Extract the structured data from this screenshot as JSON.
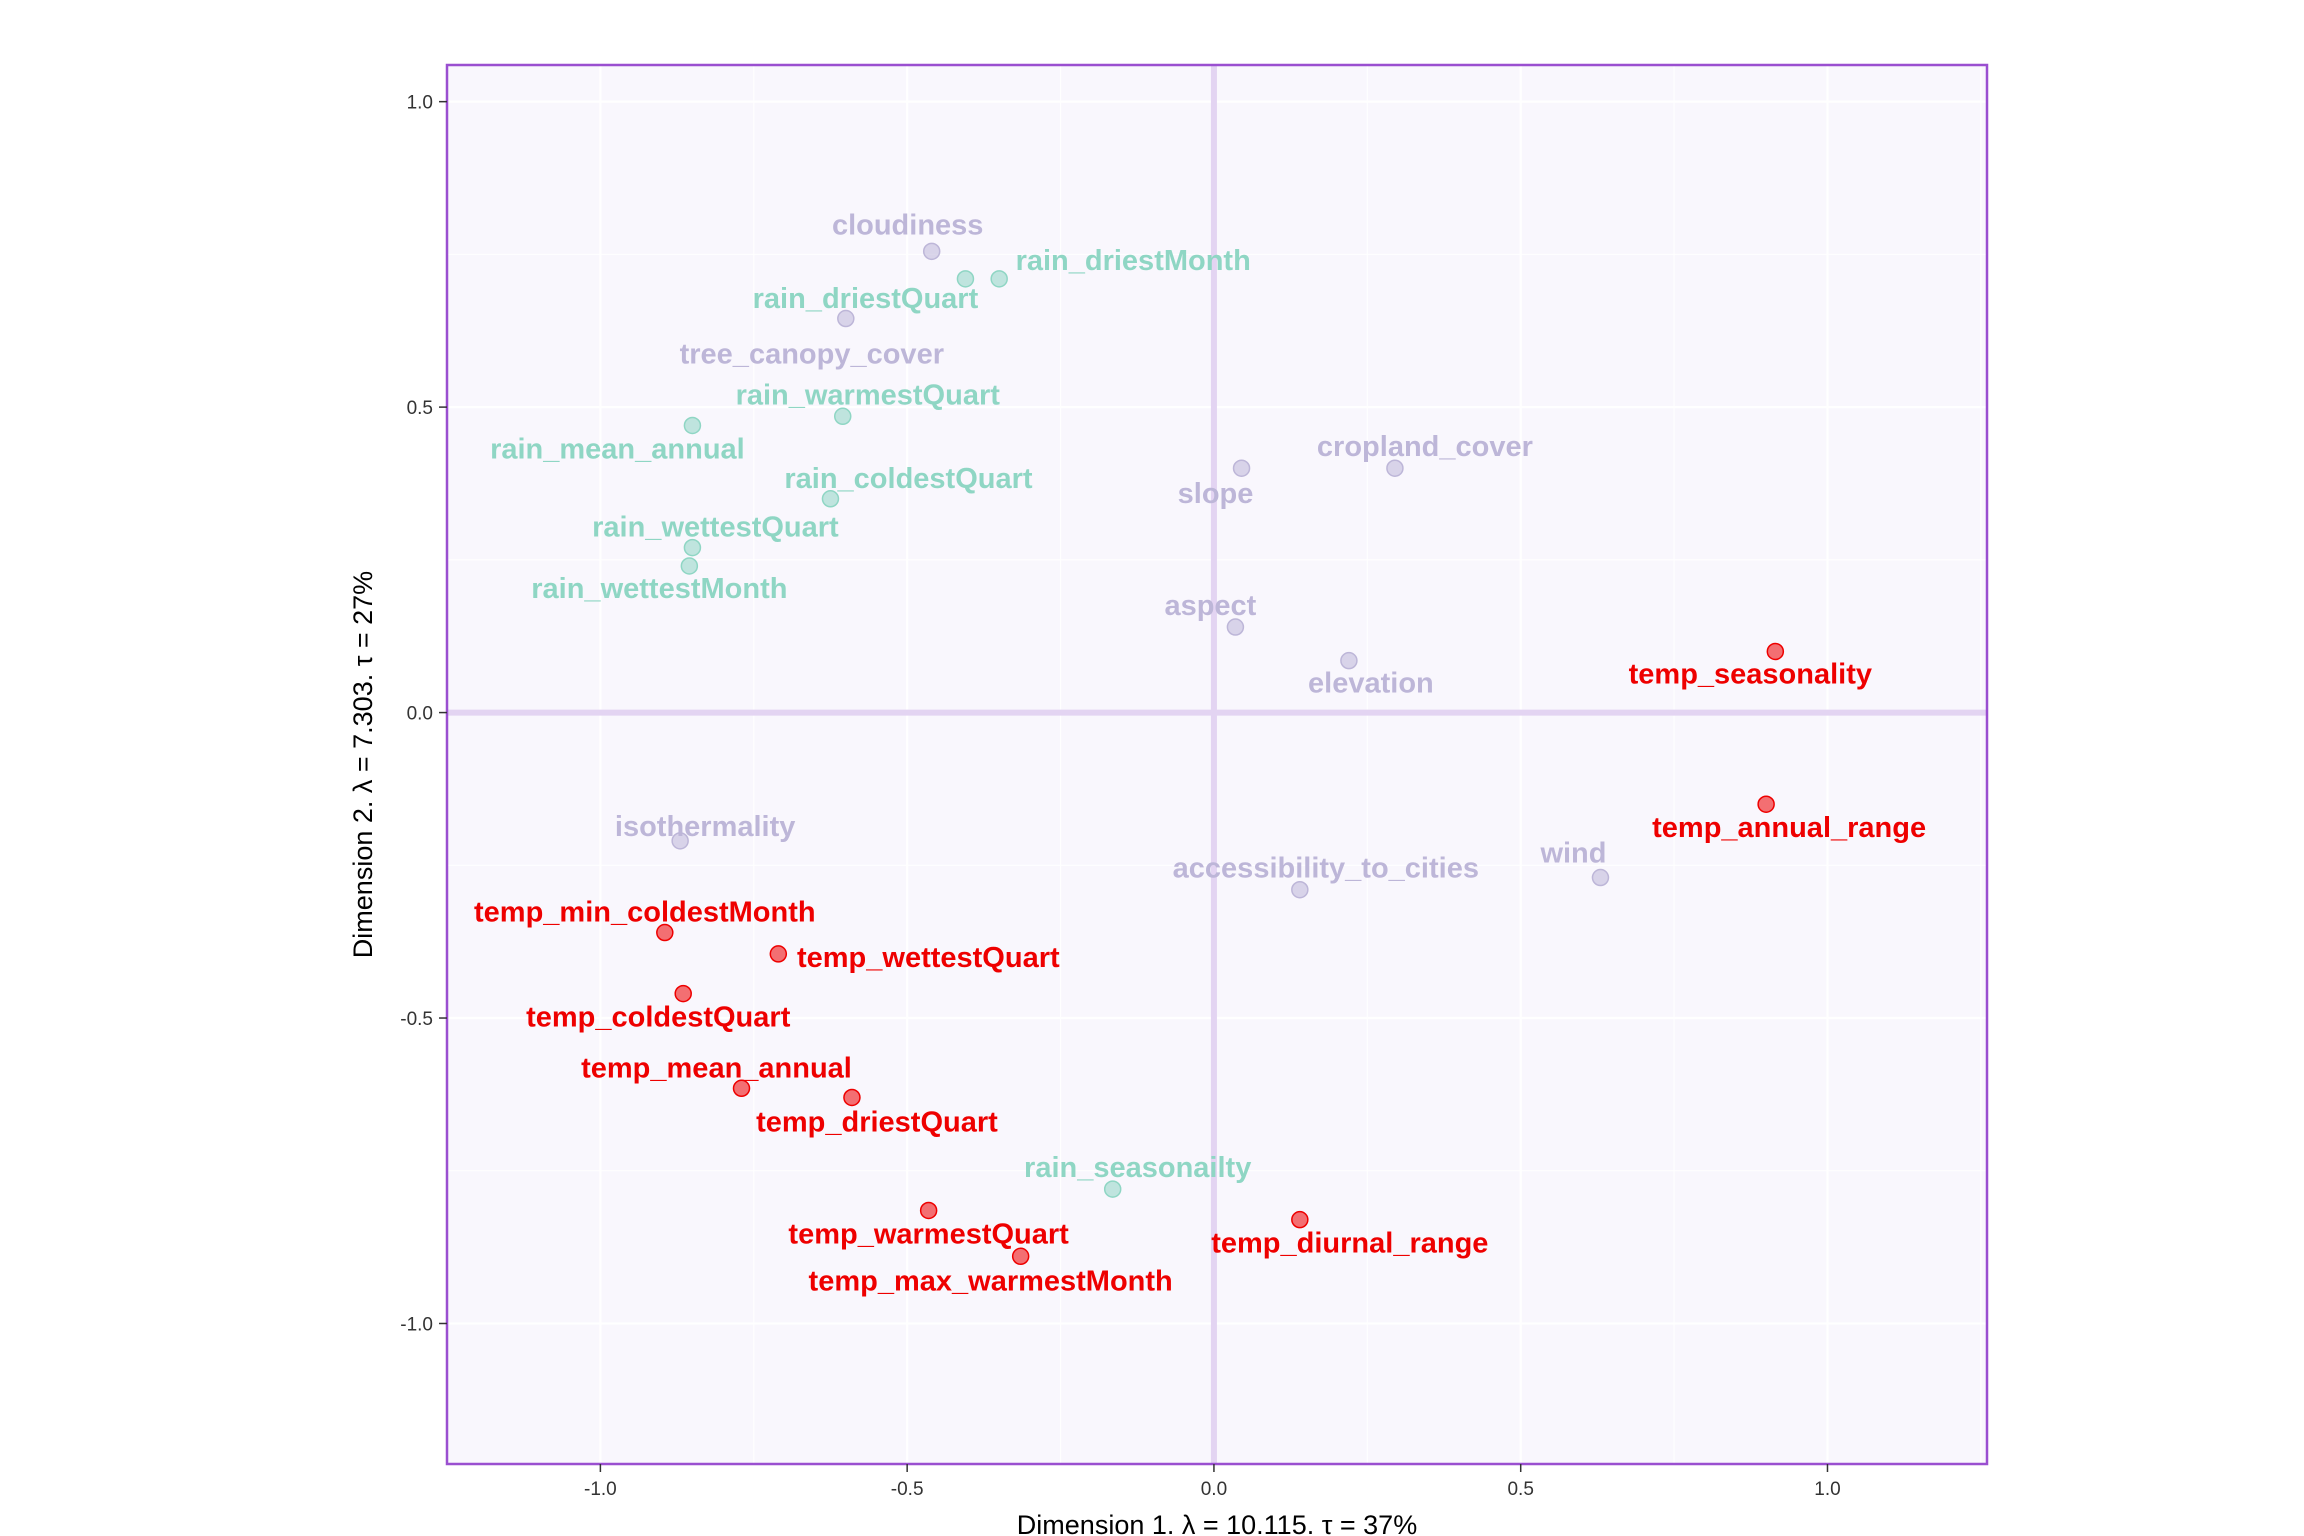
{
  "chart_data": {
    "type": "scatter",
    "title": "",
    "xlabel": "Dimension 1.   λ = 10.115.  τ = 37%",
    "ylabel": "Dimension 2.   λ = 7.303.  τ = 27%",
    "xlim": [
      -1.25,
      1.26
    ],
    "ylim": [
      -1.23,
      1.06
    ],
    "x_ticks": [
      {
        "value": -1.0,
        "label": "-1.0"
      },
      {
        "value": -0.5,
        "label": "-0.5"
      },
      {
        "value": 0.0,
        "label": "0.0"
      },
      {
        "value": 0.5,
        "label": "0.5"
      },
      {
        "value": 1.0,
        "label": "1.0"
      }
    ],
    "y_ticks": [
      {
        "value": 1.0,
        "label": "1.0"
      },
      {
        "value": 0.5,
        "label": "0.5"
      },
      {
        "value": 0.0,
        "label": "0.0"
      },
      {
        "value": -0.5,
        "label": "-0.5"
      },
      {
        "value": -1.0,
        "label": "-1.0"
      }
    ],
    "grid": true,
    "legend": "none",
    "colors": {
      "temp": "#ee0000",
      "rain": "#8fd6c4",
      "other": "#bdb6d8",
      "panel_bg": "#f9f7fd",
      "panel_border": "#9a4fd0",
      "zero_line": "#e3d4f2"
    },
    "groups": [
      {
        "key": "other",
        "points": [
          {
            "label": "cloudiness",
            "x": -0.46,
            "y": 0.755
          },
          {
            "label": "tree_canopy_cover",
            "x": -0.6,
            "y": 0.645
          },
          {
            "label": "cropland_cover",
            "x": 0.295,
            "y": 0.4
          },
          {
            "label": "slope",
            "x": 0.045,
            "y": 0.4
          },
          {
            "label": "aspect",
            "x": 0.035,
            "y": 0.14
          },
          {
            "label": "elevation",
            "x": 0.22,
            "y": 0.085
          },
          {
            "label": "isothermality",
            "x": -0.87,
            "y": -0.21
          },
          {
            "label": "accessibility_to_cities",
            "x": 0.14,
            "y": -0.29
          },
          {
            "label": "wind",
            "x": 0.63,
            "y": -0.27
          }
        ]
      },
      {
        "key": "rain",
        "points": [
          {
            "label": "rain_driestMonth",
            "x": -0.35,
            "y": 0.71
          },
          {
            "label": "rain_driestQuart",
            "x": -0.405,
            "y": 0.71
          },
          {
            "label": "rain_warmestQuart",
            "x": -0.605,
            "y": 0.485
          },
          {
            "label": "rain_mean_annual",
            "x": -0.85,
            "y": 0.47
          },
          {
            "label": "rain_coldestQuart",
            "x": -0.625,
            "y": 0.35
          },
          {
            "label": "rain_wettestQuart",
            "x": -0.85,
            "y": 0.27
          },
          {
            "label": "rain_wettestMonth",
            "x": -0.855,
            "y": 0.24
          },
          {
            "label": "rain_seasonailty",
            "x": -0.165,
            "y": -0.78
          }
        ]
      },
      {
        "key": "temp",
        "points": [
          {
            "label": "temp_seasonality",
            "x": 0.915,
            "y": 0.1
          },
          {
            "label": "temp_annual_range",
            "x": 0.9,
            "y": -0.15
          },
          {
            "label": "temp_min_coldestMonth",
            "x": -0.895,
            "y": -0.36
          },
          {
            "label": "temp_wettestQuart",
            "x": -0.71,
            "y": -0.395
          },
          {
            "label": "temp_coldestQuart",
            "x": -0.865,
            "y": -0.46
          },
          {
            "label": "temp_mean_annual",
            "x": -0.77,
            "y": -0.615
          },
          {
            "label": "temp_driestQuart",
            "x": -0.59,
            "y": -0.63
          },
          {
            "label": "temp_warmestQuart",
            "x": -0.465,
            "y": -0.815
          },
          {
            "label": "temp_max_warmestMonth",
            "x": -0.315,
            "y": -0.89
          },
          {
            "label": "temp_diurnal_range",
            "x": 0.14,
            "y": -0.83
          }
        ]
      }
    ]
  }
}
